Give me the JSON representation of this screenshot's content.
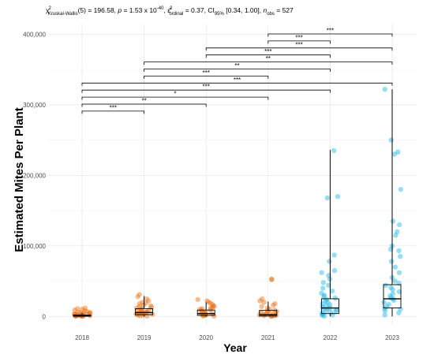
{
  "chart_data": {
    "type": "box-jitter",
    "subtitle": {
      "test": "Kruskal-Wallis",
      "df": "(5)",
      "statistic": "196.58",
      "p_mantissa": "1.53",
      "p_exponent": "-40",
      "effect_label": "ordinal",
      "effect_size": "0.37",
      "ci_label": "CI",
      "ci_level": "95%",
      "ci": "[0.34, 1.00]",
      "n_label": "obs",
      "n": "527"
    },
    "xlabel": "Year",
    "ylabel": "Estimated Mites Per Plant",
    "categories": [
      "2018",
      "2019",
      "2020",
      "2021",
      "2022",
      "2023"
    ],
    "ylim": [
      -12000,
      415000
    ],
    "yticks": [
      0,
      100000,
      200000,
      300000,
      400000
    ],
    "ytick_labels": [
      "0",
      "100,000",
      "200,000",
      "300,000",
      "400,000"
    ],
    "grid": true,
    "colors": {
      "2018": "#e66c0f",
      "2019": "#e66c0f",
      "2020": "#e66c0f",
      "2021": "#e66c0f",
      "2022": "#18b5e3",
      "2023": "#18b5e3"
    },
    "boxes": [
      {
        "category": "2018",
        "whisker_low": 0,
        "q1": 200,
        "median": 800,
        "q3": 2000,
        "whisker_high": 4500
      },
      {
        "category": "2019",
        "whisker_low": 0,
        "q1": 2500,
        "median": 5500,
        "q3": 11000,
        "whisker_high": 29000
      },
      {
        "category": "2020",
        "whisker_low": 0,
        "q1": 1500,
        "median": 4000,
        "q3": 9000,
        "whisker_high": 20000
      },
      {
        "category": "2021",
        "whisker_low": 0,
        "q1": 500,
        "median": 2500,
        "q3": 8500,
        "whisker_high": 21000
      },
      {
        "category": "2022",
        "whisker_low": 0,
        "q1": 4000,
        "median": 12000,
        "q3": 25000,
        "whisker_high": 236000
      },
      {
        "category": "2023",
        "whisker_low": 0,
        "q1": 12000,
        "median": 25000,
        "q3": 45000,
        "whisker_high": 322000
      }
    ],
    "points": {
      "2018": [
        200,
        500,
        900,
        1200,
        1800,
        2500,
        3000,
        3500,
        4000,
        5000,
        6000,
        7000,
        8000,
        9000,
        10000,
        11000,
        12000,
        600,
        1500,
        2200,
        2800,
        3300,
        4500,
        5500,
        300,
        700,
        1000,
        1400,
        1600,
        2000
      ],
      "2019": [
        500,
        1000,
        2000,
        3000,
        4000,
        5000,
        6000,
        7000,
        8000,
        9000,
        10000,
        11000,
        12000,
        13000,
        14000,
        15000,
        16000,
        18000,
        19000,
        20000,
        22000,
        25000,
        28000,
        31000,
        1500,
        2500,
        3500,
        4500,
        5500,
        6500
      ],
      "2020": [
        300,
        800,
        1500,
        2000,
        3000,
        4000,
        5000,
        6000,
        7000,
        8000,
        9000,
        10000,
        11000,
        12000,
        13000,
        14000,
        15000,
        17000,
        19000,
        20000,
        22000,
        24000,
        1200,
        2500,
        3500,
        4500
      ],
      "2021": [
        200,
        500,
        1000,
        1500,
        2000,
        3000,
        4000,
        5000,
        6000,
        7000,
        8000,
        9000,
        10000,
        12000,
        14000,
        16000,
        18000,
        20000,
        22000,
        25000,
        52000,
        53000,
        800,
        1200,
        2500,
        3500
      ],
      "2022": [
        500,
        1500,
        3000,
        4500,
        6000,
        7500,
        9000,
        10500,
        12000,
        13500,
        15000,
        16500,
        18000,
        20000,
        22000,
        24000,
        26000,
        28000,
        30000,
        33000,
        36000,
        40000,
        44000,
        48000,
        53000,
        58000,
        62000,
        65000,
        78000,
        87000,
        168000,
        170000,
        235000,
        2000,
        8000,
        11000
      ],
      "2023": [
        2000,
        5000,
        8000,
        11000,
        14000,
        17000,
        20000,
        23000,
        26000,
        29000,
        32000,
        35000,
        38000,
        41000,
        44000,
        47000,
        50000,
        55000,
        62000,
        70000,
        78000,
        85000,
        93000,
        95000,
        100000,
        115000,
        120000,
        130000,
        135000,
        180000,
        230000,
        233000,
        250000,
        322000,
        10000,
        25000
      ]
    },
    "comparisons": [
      {
        "from": "2021",
        "to": "2023",
        "label": "***"
      },
      {
        "from": "2021",
        "to": "2022",
        "label": "***"
      },
      {
        "from": "2020",
        "to": "2023",
        "label": "***"
      },
      {
        "from": "2020",
        "to": "2022",
        "label": "***"
      },
      {
        "from": "2019",
        "to": "2023",
        "label": "**"
      },
      {
        "from": "2019",
        "to": "2022",
        "label": "**"
      },
      {
        "from": "2019",
        "to": "2021",
        "label": "***"
      },
      {
        "from": "2018",
        "to": "2023",
        "label": "***"
      },
      {
        "from": "2018",
        "to": "2022",
        "label": "***"
      },
      {
        "from": "2018",
        "to": "2021",
        "label": "*"
      },
      {
        "from": "2018",
        "to": "2020",
        "label": "**"
      },
      {
        "from": "2018",
        "to": "2019",
        "label": "***"
      }
    ]
  }
}
